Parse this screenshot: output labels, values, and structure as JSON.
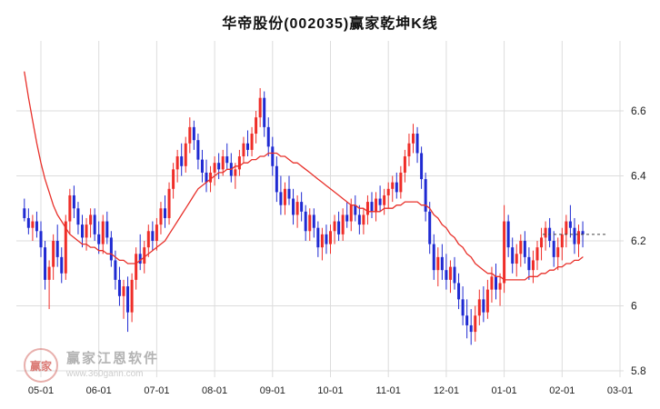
{
  "header": {
    "title": "华帝股份(002035)赢家乾坤K线"
  },
  "watermark": {
    "logo_text": "赢家",
    "brand": "赢家江恩软件",
    "url": "www.360gann.com"
  },
  "colors": {
    "up": "#ef2d28",
    "down": "#1f2ad2",
    "ma": "#e8302a",
    "grid": "#dcdcdc",
    "axis_text": "#222222",
    "last_price_line": "#444444"
  },
  "chart_data": {
    "type": "candlestick",
    "title": "华帝股份(002035)赢家乾坤K线",
    "x_labels": [
      "05-01",
      "06-01",
      "07-01",
      "08-01",
      "09-01",
      "10-01",
      "11-01",
      "12-01",
      "01-01",
      "02-01",
      "03-01"
    ],
    "y_ticks": [
      6.6,
      6.4,
      6.2,
      6,
      5.8
    ],
    "ylim": [
      5.78,
      6.82
    ],
    "grid": true,
    "legend_position": "none",
    "candles_per_month": 14,
    "pre_candles": 4,
    "last_price": 6.22,
    "candles": [
      [
        6.3,
        6.33,
        6.26,
        6.27
      ],
      [
        6.27,
        6.3,
        6.22,
        6.24
      ],
      [
        6.24,
        6.28,
        6.2,
        6.26
      ],
      [
        6.26,
        6.29,
        6.21,
        6.23
      ],
      [
        6.23,
        6.26,
        6.15,
        6.18
      ],
      [
        6.18,
        6.2,
        6.05,
        6.08
      ],
      [
        6.08,
        6.14,
        5.99,
        6.12
      ],
      [
        6.12,
        6.22,
        6.08,
        6.2
      ],
      [
        6.2,
        6.25,
        6.12,
        6.15
      ],
      [
        6.15,
        6.18,
        6.07,
        6.1
      ],
      [
        6.1,
        6.28,
        6.08,
        6.26
      ],
      [
        6.26,
        6.36,
        6.22,
        6.34
      ],
      [
        6.34,
        6.37,
        6.27,
        6.3
      ],
      [
        6.3,
        6.32,
        6.22,
        6.25
      ],
      [
        6.25,
        6.28,
        6.18,
        6.21
      ],
      [
        6.21,
        6.27,
        6.17,
        6.25
      ],
      [
        6.25,
        6.3,
        6.21,
        6.28
      ],
      [
        6.28,
        6.3,
        6.2,
        6.22
      ],
      [
        6.22,
        6.26,
        6.16,
        6.19
      ],
      [
        6.19,
        6.28,
        6.16,
        6.26
      ],
      [
        6.26,
        6.29,
        6.19,
        6.21
      ],
      [
        6.21,
        6.23,
        6.12,
        6.14
      ],
      [
        6.14,
        6.17,
        6.05,
        6.08
      ],
      [
        6.08,
        6.12,
        6.0,
        6.03
      ],
      [
        6.03,
        6.08,
        5.96,
        6.06
      ],
      [
        6.06,
        6.09,
        5.92,
        5.98
      ],
      [
        5.98,
        6.1,
        5.95,
        6.08
      ],
      [
        6.08,
        6.18,
        6.05,
        6.16
      ],
      [
        6.16,
        6.22,
        6.11,
        6.13
      ],
      [
        6.13,
        6.2,
        6.1,
        6.18
      ],
      [
        6.18,
        6.25,
        6.15,
        6.23
      ],
      [
        6.23,
        6.26,
        6.17,
        6.2
      ],
      [
        6.2,
        6.27,
        6.17,
        6.25
      ],
      [
        6.25,
        6.32,
        6.22,
        6.3
      ],
      [
        6.3,
        6.34,
        6.24,
        6.27
      ],
      [
        6.27,
        6.38,
        6.25,
        6.36
      ],
      [
        6.36,
        6.44,
        6.33,
        6.42
      ],
      [
        6.42,
        6.48,
        6.38,
        6.46
      ],
      [
        6.46,
        6.5,
        6.4,
        6.43
      ],
      [
        6.43,
        6.52,
        6.41,
        6.5
      ],
      [
        6.5,
        6.58,
        6.47,
        6.55
      ],
      [
        6.55,
        6.57,
        6.48,
        6.51
      ],
      [
        6.51,
        6.53,
        6.42,
        6.45
      ],
      [
        6.45,
        6.48,
        6.38,
        6.41
      ],
      [
        6.41,
        6.45,
        6.35,
        6.38
      ],
      [
        6.38,
        6.43,
        6.35,
        6.41
      ],
      [
        6.41,
        6.46,
        6.37,
        6.44
      ],
      [
        6.44,
        6.47,
        6.39,
        6.42
      ],
      [
        6.42,
        6.48,
        6.4,
        6.46
      ],
      [
        6.46,
        6.5,
        6.42,
        6.44
      ],
      [
        6.44,
        6.47,
        6.38,
        6.4
      ],
      [
        6.4,
        6.44,
        6.36,
        6.42
      ],
      [
        6.42,
        6.48,
        6.4,
        6.46
      ],
      [
        6.46,
        6.52,
        6.44,
        6.5
      ],
      [
        6.5,
        6.54,
        6.46,
        6.48
      ],
      [
        6.48,
        6.55,
        6.46,
        6.53
      ],
      [
        6.53,
        6.6,
        6.5,
        6.58
      ],
      [
        6.58,
        6.67,
        6.55,
        6.64
      ],
      [
        6.64,
        6.66,
        6.52,
        6.55
      ],
      [
        6.55,
        6.58,
        6.46,
        6.49
      ],
      [
        6.49,
        6.52,
        6.4,
        6.43
      ],
      [
        6.43,
        6.46,
        6.32,
        6.35
      ],
      [
        6.35,
        6.4,
        6.28,
        6.31
      ],
      [
        6.31,
        6.38,
        6.28,
        6.36
      ],
      [
        6.36,
        6.4,
        6.31,
        6.33
      ],
      [
        6.33,
        6.36,
        6.25,
        6.28
      ],
      [
        6.28,
        6.34,
        6.24,
        6.32
      ],
      [
        6.32,
        6.35,
        6.26,
        6.29
      ],
      [
        6.29,
        6.31,
        6.2,
        6.23
      ],
      [
        6.23,
        6.3,
        6.2,
        6.28
      ],
      [
        6.28,
        6.3,
        6.21,
        6.24
      ],
      [
        6.24,
        6.26,
        6.15,
        6.18
      ],
      [
        6.18,
        6.24,
        6.14,
        6.22
      ],
      [
        6.22,
        6.25,
        6.16,
        6.19
      ],
      [
        6.19,
        6.25,
        6.16,
        6.23
      ],
      [
        6.23,
        6.28,
        6.19,
        6.26
      ],
      [
        6.26,
        6.29,
        6.2,
        6.22
      ],
      [
        6.22,
        6.3,
        6.2,
        6.28
      ],
      [
        6.28,
        6.32,
        6.24,
        6.26
      ],
      [
        6.26,
        6.33,
        6.23,
        6.31
      ],
      [
        6.31,
        6.34,
        6.26,
        6.28
      ],
      [
        6.28,
        6.31,
        6.22,
        6.25
      ],
      [
        6.25,
        6.3,
        6.22,
        6.28
      ],
      [
        6.28,
        6.34,
        6.25,
        6.32
      ],
      [
        6.32,
        6.35,
        6.27,
        6.29
      ],
      [
        6.29,
        6.35,
        6.26,
        6.33
      ],
      [
        6.33,
        6.37,
        6.29,
        6.31
      ],
      [
        6.31,
        6.36,
        6.28,
        6.34
      ],
      [
        6.34,
        6.38,
        6.3,
        6.36
      ],
      [
        6.36,
        6.4,
        6.32,
        6.38
      ],
      [
        6.38,
        6.41,
        6.33,
        6.35
      ],
      [
        6.35,
        6.43,
        6.33,
        6.41
      ],
      [
        6.41,
        6.48,
        6.38,
        6.46
      ],
      [
        6.46,
        6.53,
        6.43,
        6.5
      ],
      [
        6.5,
        6.56,
        6.47,
        6.53
      ],
      [
        6.53,
        6.55,
        6.44,
        6.47
      ],
      [
        6.47,
        6.49,
        6.36,
        6.39
      ],
      [
        6.39,
        6.41,
        6.26,
        6.29
      ],
      [
        6.29,
        6.32,
        6.16,
        6.19
      ],
      [
        6.19,
        6.22,
        6.08,
        6.11
      ],
      [
        6.11,
        6.18,
        6.06,
        6.15
      ],
      [
        6.15,
        6.19,
        6.08,
        6.11
      ],
      [
        6.11,
        6.16,
        6.05,
        6.08
      ],
      [
        6.08,
        6.14,
        6.04,
        6.12
      ],
      [
        6.12,
        6.15,
        6.05,
        6.07
      ],
      [
        6.07,
        6.1,
        5.99,
        6.02
      ],
      [
        6.02,
        6.06,
        5.94,
        5.97
      ],
      [
        5.97,
        6.02,
        5.9,
        5.94
      ],
      [
        5.94,
        5.99,
        5.88,
        5.92
      ],
      [
        5.92,
        6.0,
        5.89,
        5.97
      ],
      [
        5.97,
        6.05,
        5.94,
        6.02
      ],
      [
        6.02,
        6.06,
        5.95,
        5.98
      ],
      [
        5.98,
        6.08,
        5.96,
        6.05
      ],
      [
        6.05,
        6.12,
        6.01,
        6.09
      ],
      [
        6.09,
        6.13,
        6.02,
        6.05
      ],
      [
        6.05,
        6.1,
        6.0,
        6.07
      ],
      [
        6.07,
        6.31,
        6.04,
        6.26
      ],
      [
        6.26,
        6.28,
        6.15,
        6.18
      ],
      [
        6.18,
        6.21,
        6.1,
        6.13
      ],
      [
        6.13,
        6.19,
        6.09,
        6.16
      ],
      [
        6.16,
        6.22,
        6.12,
        6.2
      ],
      [
        6.2,
        6.23,
        6.13,
        6.15
      ],
      [
        6.15,
        6.18,
        6.08,
        6.11
      ],
      [
        6.11,
        6.17,
        6.07,
        6.14
      ],
      [
        6.14,
        6.2,
        6.11,
        6.18
      ],
      [
        6.18,
        6.24,
        6.14,
        6.21
      ],
      [
        6.21,
        6.26,
        6.17,
        6.24
      ],
      [
        6.24,
        6.27,
        6.18,
        6.2
      ],
      [
        6.2,
        6.23,
        6.12,
        6.15
      ],
      [
        6.15,
        6.21,
        6.11,
        6.18
      ],
      [
        6.18,
        6.24,
        6.14,
        6.22
      ],
      [
        6.22,
        6.28,
        6.18,
        6.26
      ],
      [
        6.26,
        6.31,
        6.21,
        6.24
      ],
      [
        6.24,
        6.27,
        6.16,
        6.19
      ],
      [
        6.19,
        6.25,
        6.15,
        6.23
      ],
      [
        6.23,
        6.26,
        6.18,
        6.22
      ]
    ],
    "ma_line": [
      6.72,
      6.64,
      6.57,
      6.5,
      6.44,
      6.39,
      6.35,
      6.31,
      6.28,
      6.26,
      6.24,
      6.22,
      6.21,
      6.2,
      6.19,
      6.19,
      6.18,
      6.18,
      6.17,
      6.17,
      6.16,
      6.16,
      6.15,
      6.14,
      6.14,
      6.13,
      6.13,
      6.13,
      6.14,
      6.15,
      6.16,
      6.17,
      6.18,
      6.19,
      6.2,
      6.22,
      6.24,
      6.26,
      6.28,
      6.3,
      6.32,
      6.34,
      6.36,
      6.37,
      6.38,
      6.39,
      6.4,
      6.41,
      6.41,
      6.42,
      6.42,
      6.43,
      6.43,
      6.44,
      6.44,
      6.45,
      6.45,
      6.46,
      6.46,
      6.47,
      6.47,
      6.47,
      6.46,
      6.46,
      6.45,
      6.44,
      6.44,
      6.43,
      6.42,
      6.41,
      6.4,
      6.39,
      6.38,
      6.37,
      6.36,
      6.35,
      6.34,
      6.33,
      6.32,
      6.31,
      6.31,
      6.3,
      6.3,
      6.29,
      6.29,
      6.29,
      6.29,
      6.3,
      6.3,
      6.3,
      6.31,
      6.31,
      6.32,
      6.32,
      6.32,
      6.32,
      6.31,
      6.31,
      6.3,
      6.28,
      6.27,
      6.25,
      6.24,
      6.22,
      6.21,
      6.19,
      6.18,
      6.16,
      6.15,
      6.13,
      6.12,
      6.11,
      6.1,
      6.1,
      6.09,
      6.09,
      6.08,
      6.08,
      6.08,
      6.08,
      6.08,
      6.08,
      6.09,
      6.09,
      6.09,
      6.1,
      6.1,
      6.11,
      6.11,
      6.12,
      6.12,
      6.13,
      6.13,
      6.14,
      6.14,
      6.15
    ]
  }
}
